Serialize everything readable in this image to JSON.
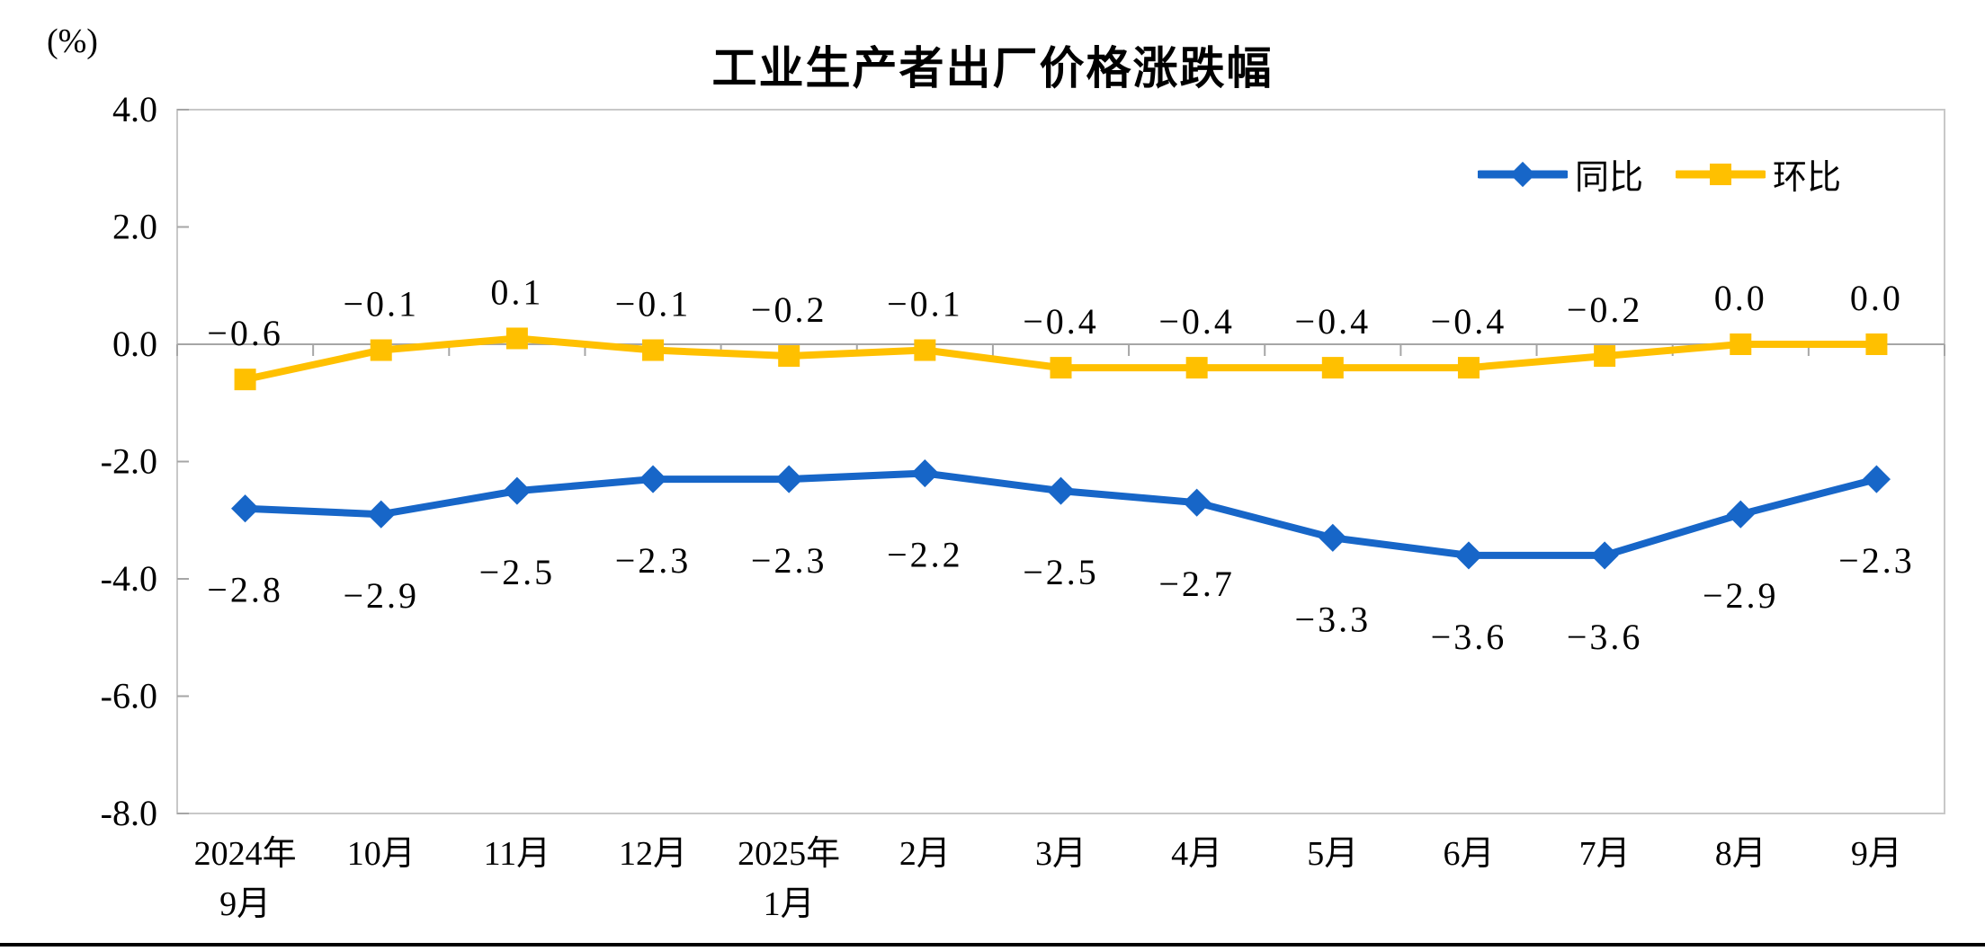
{
  "chart_data": {
    "type": "line",
    "title": "工业生产者出厂价格涨跌幅",
    "unit_label": "(%)",
    "categories": [
      {
        "line1": "2024年",
        "line2": "9月"
      },
      {
        "line1": "10月",
        "line2": ""
      },
      {
        "line1": "11月",
        "line2": ""
      },
      {
        "line1": "12月",
        "line2": ""
      },
      {
        "line1": "2025年",
        "line2": "1月"
      },
      {
        "line1": "2月",
        "line2": ""
      },
      {
        "line1": "3月",
        "line2": ""
      },
      {
        "line1": "4月",
        "line2": ""
      },
      {
        "line1": "5月",
        "line2": ""
      },
      {
        "line1": "6月",
        "line2": ""
      },
      {
        "line1": "7月",
        "line2": ""
      },
      {
        "line1": "8月",
        "line2": ""
      },
      {
        "line1": "9月",
        "line2": ""
      }
    ],
    "series": [
      {
        "name": "同比",
        "color": "#1766C8",
        "marker": "diamond",
        "label_position": "below",
        "values": [
          -2.8,
          -2.9,
          -2.5,
          -2.3,
          -2.3,
          -2.2,
          -2.5,
          -2.7,
          -3.3,
          -3.6,
          -3.6,
          -2.9,
          -2.3
        ],
        "labels": [
          "−2.8",
          "−2.9",
          "−2.5",
          "−2.3",
          "−2.3",
          "−2.2",
          "−2.5",
          "−2.7",
          "−3.3",
          "−3.6",
          "−3.6",
          "−2.9",
          "−2.3"
        ]
      },
      {
        "name": "环比",
        "color": "#FFC000",
        "marker": "square",
        "label_position": "above",
        "values": [
          -0.6,
          -0.1,
          0.1,
          -0.1,
          -0.2,
          -0.1,
          -0.4,
          -0.4,
          -0.4,
          -0.4,
          -0.2,
          0.0,
          0.0
        ],
        "labels": [
          "−0.6",
          "−0.1",
          "0.1",
          "−0.1",
          "−0.2",
          "−0.1",
          "−0.4",
          "−0.4",
          "−0.4",
          "−0.4",
          "−0.2",
          "0.0",
          "0.0"
        ]
      }
    ],
    "y_axis": {
      "min": -8.0,
      "max": 4.0,
      "step": 2.0,
      "tick_labels": [
        "4.0",
        "2.0",
        "0.0",
        "-2.0",
        "-4.0",
        "-6.0",
        "-8.0"
      ]
    },
    "legend": {
      "position": "top-right",
      "items": [
        "同比",
        "环比"
      ]
    },
    "grid": "zero-axis-only",
    "colors": {
      "axis_line": "#A6A6A6",
      "plot_border": "#C8C8C8",
      "text": "#000000"
    }
  }
}
